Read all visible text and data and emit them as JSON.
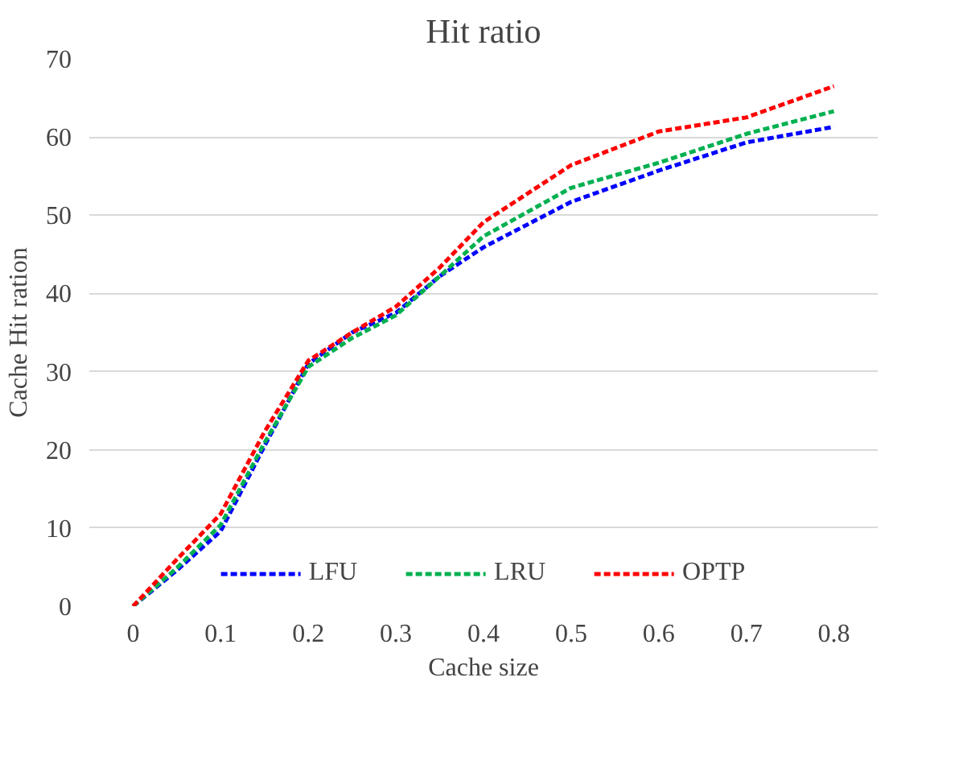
{
  "chart_data": {
    "type": "line",
    "title": "Hit ratio",
    "xlabel": "Cache size",
    "ylabel": "Cache Hit ration",
    "x": [
      0,
      0.05,
      0.1,
      0.15,
      0.2,
      0.25,
      0.3,
      0.35,
      0.4,
      0.5,
      0.6,
      0.7,
      0.8
    ],
    "series": [
      {
        "name": "LFU",
        "color": "#0000ff",
        "values": [
          0,
          4.6,
          9.6,
          20.5,
          31,
          35,
          37.5,
          42.2,
          45.9,
          51.7,
          55.7,
          59.3,
          61.3
        ]
      },
      {
        "name": "LRU",
        "color": "#00b050",
        "values": [
          0,
          4.9,
          10.4,
          20.9,
          30.6,
          34.3,
          37.2,
          42.2,
          47.3,
          53.5,
          56.7,
          60.4,
          63.3
        ]
      },
      {
        "name": "OPTP",
        "color": "#ff0000",
        "values": [
          0,
          6,
          11.8,
          22.3,
          31.4,
          35,
          38.3,
          43.3,
          49.1,
          56.4,
          60.7,
          62.5,
          66.5
        ]
      }
    ],
    "xlim": [
      -0.05,
      0.85
    ],
    "xticks": [
      0,
      0.1,
      0.2,
      0.3,
      0.4,
      0.5,
      0.6,
      0.7,
      0.8
    ],
    "ylim": [
      0,
      70
    ],
    "yticks": [
      0,
      10,
      20,
      30,
      40,
      50,
      60,
      70
    ],
    "grid": "y",
    "legend": "bottom",
    "line_style": "dashed",
    "marker": "none"
  }
}
